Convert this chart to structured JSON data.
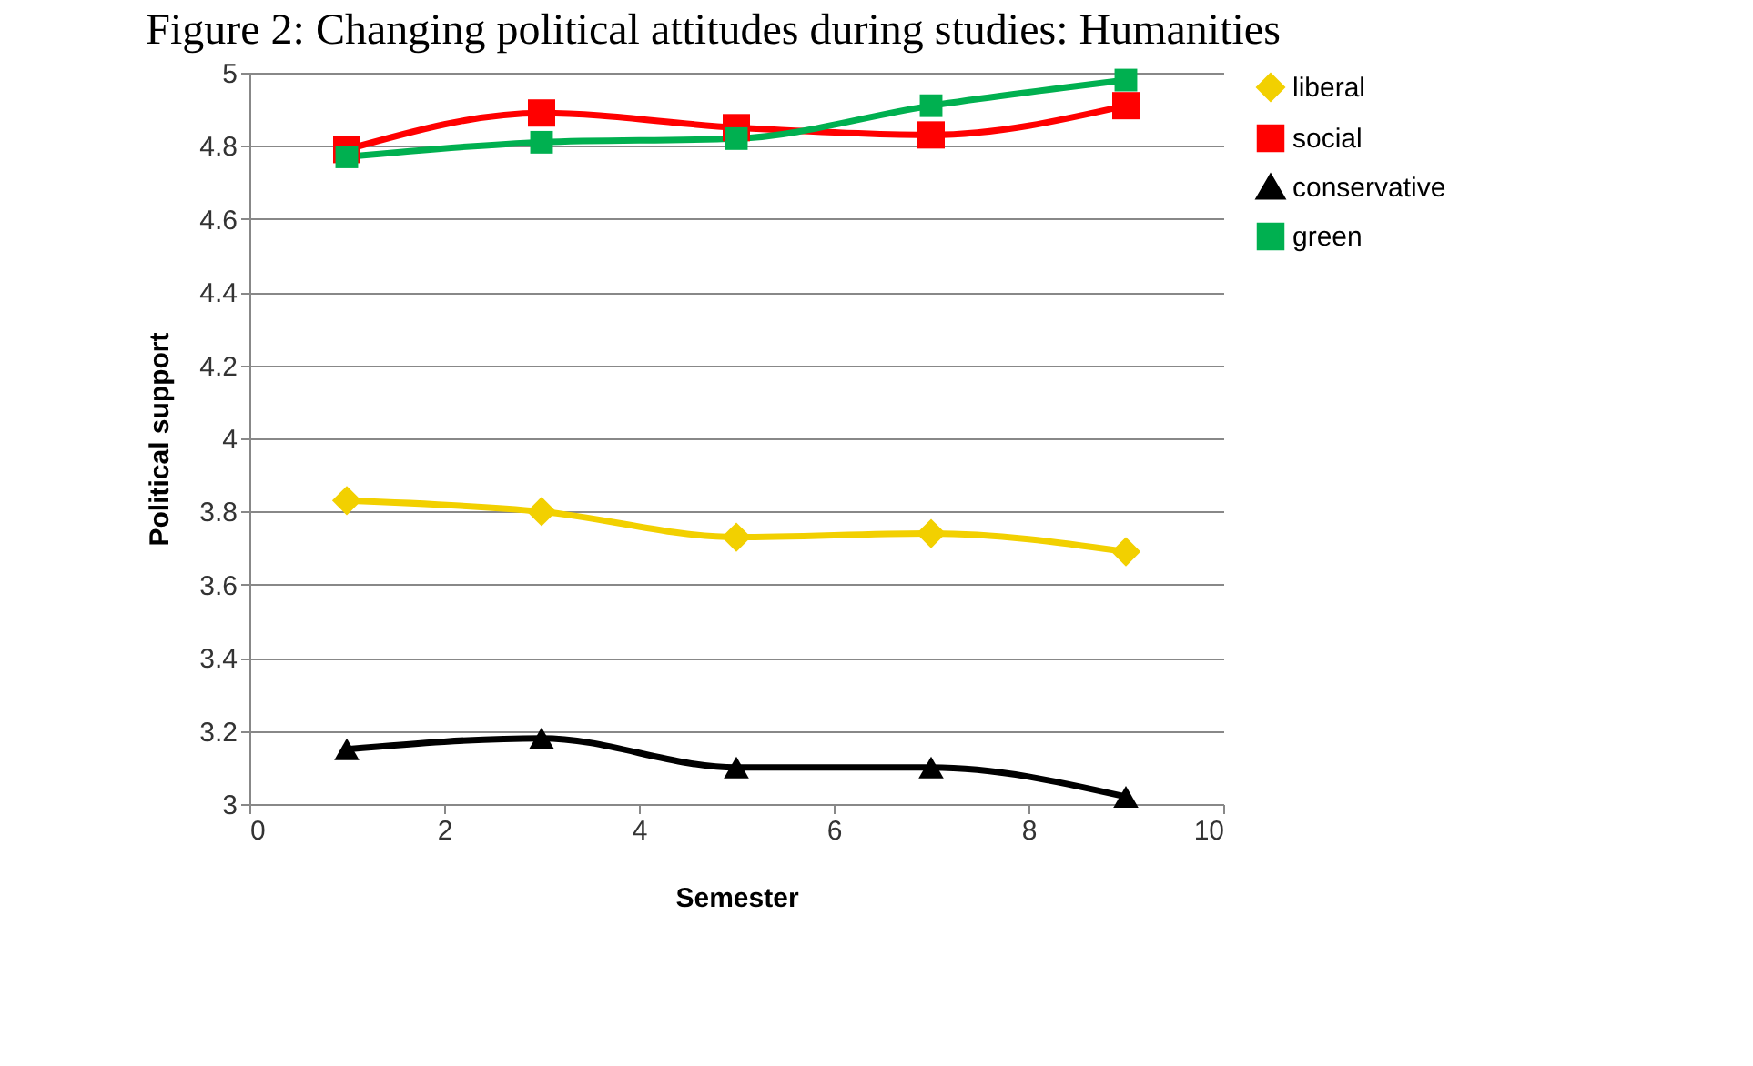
{
  "chart_data": {
    "type": "line",
    "title": "Figure 2: Changing political attitudes during studies: Humanities",
    "xlabel": "Semester",
    "ylabel": "Political support",
    "x": [
      1,
      3,
      5,
      7,
      9
    ],
    "xlim": [
      0,
      10
    ],
    "xticks": [
      0,
      2,
      4,
      6,
      8,
      10
    ],
    "ylim": [
      3,
      5
    ],
    "yticks": [
      3,
      3.2,
      3.4,
      3.6,
      3.8,
      4,
      4.2,
      4.4,
      4.6,
      4.8,
      5
    ],
    "grid": "y",
    "legend": "right",
    "line_style": "solid",
    "series": [
      {
        "name": "liberal",
        "color": "#f2d000",
        "marker": "diamond",
        "values": [
          3.83,
          3.8,
          3.73,
          3.74,
          3.69
        ]
      },
      {
        "name": "social",
        "color": "#ff0000",
        "marker": "square",
        "values": [
          4.79,
          4.89,
          4.85,
          4.83,
          4.91
        ]
      },
      {
        "name": "conservative",
        "color": "#000000",
        "marker": "triangle",
        "values": [
          3.15,
          3.18,
          3.1,
          3.1,
          3.02
        ]
      },
      {
        "name": "green",
        "color": "#00b050",
        "marker": "square",
        "values": [
          4.77,
          4.81,
          4.82,
          4.91,
          4.98
        ]
      }
    ]
  }
}
